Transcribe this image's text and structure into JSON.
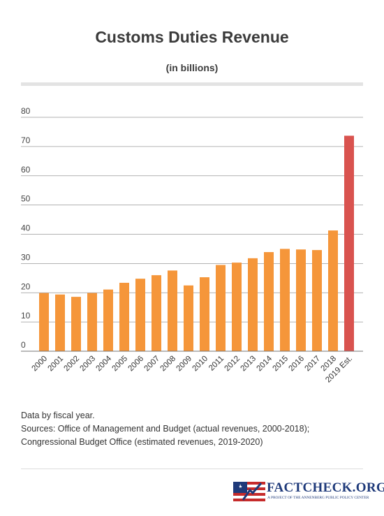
{
  "chart_data": {
    "type": "bar",
    "title": "Customs Duties Revenue",
    "subtitle": "(in billions)",
    "categories": [
      "2000",
      "2001",
      "2002",
      "2003",
      "2004",
      "2005",
      "2006",
      "2007",
      "2008",
      "2009",
      "2010",
      "2011",
      "2012",
      "2013",
      "2014",
      "2015",
      "2016",
      "2017",
      "2018",
      "2019 Est."
    ],
    "values": [
      19.9,
      19.4,
      18.6,
      19.9,
      21.1,
      23.4,
      24.8,
      26.0,
      27.6,
      22.5,
      25.3,
      29.5,
      30.3,
      31.8,
      33.9,
      35.0,
      34.8,
      34.6,
      41.3,
      73.7
    ],
    "ylim": [
      0,
      80
    ],
    "yticks": [
      0,
      10,
      20,
      30,
      40,
      50,
      60,
      70,
      80
    ],
    "grid": true,
    "legend": "none",
    "colors": {
      "actual": "#f5963a",
      "estimate": "#d9534f",
      "grid": "#999999"
    }
  },
  "notes": [
    "Data by fiscal year.",
    "Sources: Office of Management and Budget (actual revenues, 2000-2018);",
    "Congressional Budget Office (estimated revenues, 2019-2020)"
  ],
  "logo": {
    "text": "FACTCHECK.ORG",
    "tagline": "A PROJECT OF THE ANNENBERG PUBLIC POLICY CENTER",
    "icon": "flag-logo-icon"
  }
}
